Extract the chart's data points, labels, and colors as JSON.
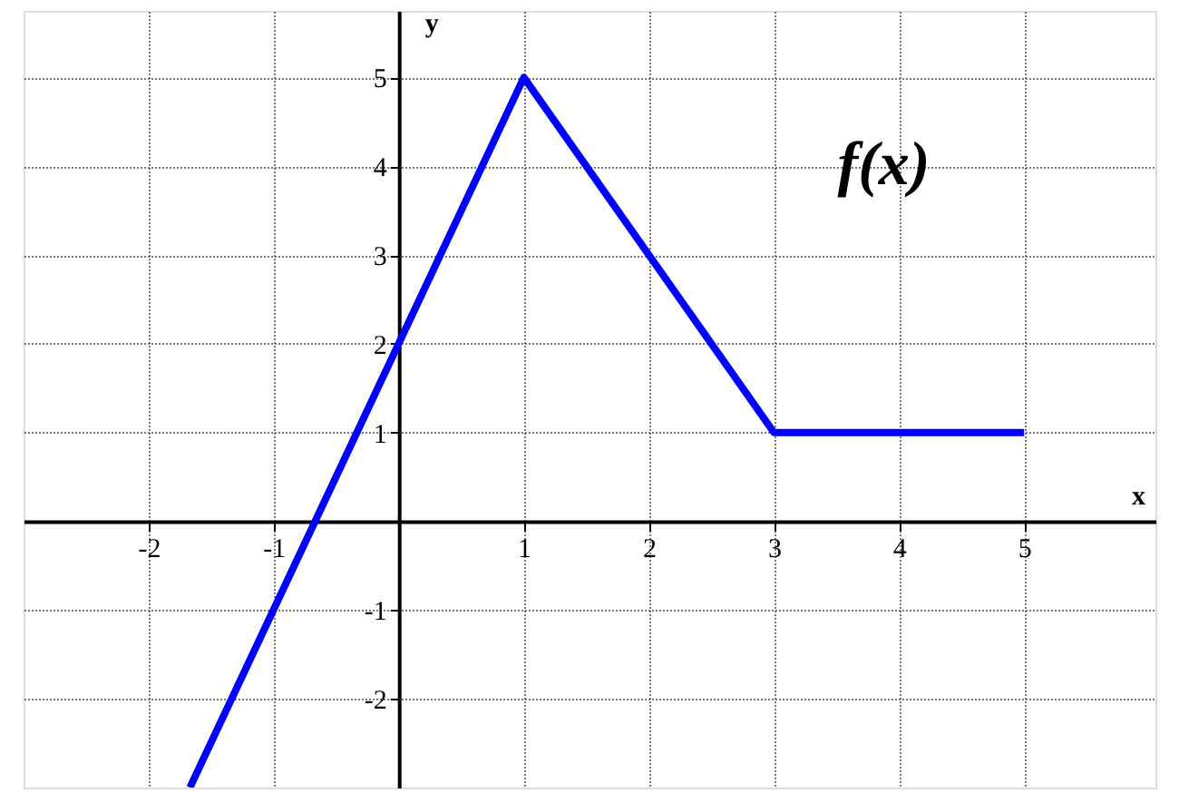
{
  "chart_data": {
    "type": "line",
    "xlabel": "x",
    "ylabel": "y",
    "x": [
      -1.67,
      1,
      3,
      5
    ],
    "series": [
      {
        "name": "f(x)",
        "color": "#0000ff",
        "values": [
          -3,
          5,
          1,
          1
        ]
      }
    ],
    "xlim": [
      -3,
      6.05
    ],
    "ylim": [
      -3,
      5.75
    ],
    "xticks": [
      -2,
      -1,
      {
        "value": 0,
        "label": null
      },
      1,
      2,
      3,
      4,
      5
    ],
    "yticks": [
      -2,
      -1,
      {
        "value": 0,
        "label": null
      },
      1,
      2,
      3,
      4,
      5
    ],
    "grid": true,
    "marker": "none",
    "line_style": "solid"
  }
}
